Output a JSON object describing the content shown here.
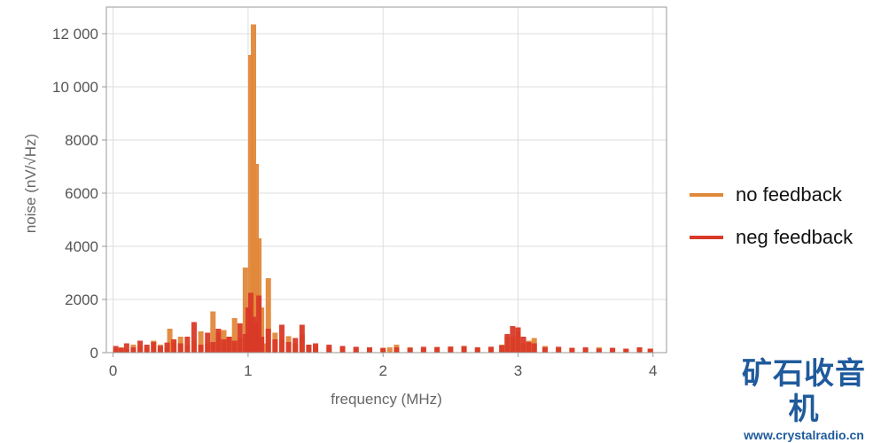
{
  "chart_data": {
    "type": "bar",
    "xlabel": "frequency (MHz)",
    "ylabel": "noise (nV/√Hz)",
    "xlim": [
      -0.05,
      4.1
    ],
    "ylim": [
      0,
      13000
    ],
    "xticks": [
      0,
      1,
      2,
      3,
      4
    ],
    "xtick_labels": [
      "0",
      "1",
      "2",
      "3",
      "4"
    ],
    "yticks": [
      0,
      2000,
      4000,
      6000,
      8000,
      10000,
      12000
    ],
    "ytick_labels": [
      "0",
      "2000",
      "4000",
      "6000",
      "8000",
      "10 000",
      "12 000"
    ],
    "grid": true,
    "legend_position": "right",
    "series": [
      {
        "name": "no feedback",
        "color": "#e0883a",
        "x": [
          0.02,
          0.06,
          0.1,
          0.15,
          0.2,
          0.25,
          0.3,
          0.35,
          0.4,
          0.42,
          0.45,
          0.5,
          0.55,
          0.6,
          0.65,
          0.7,
          0.74,
          0.78,
          0.82,
          0.86,
          0.9,
          0.94,
          0.98,
          1.0,
          1.02,
          1.04,
          1.06,
          1.08,
          1.1,
          1.12,
          1.15,
          1.2,
          1.25,
          1.3,
          1.35,
          1.4,
          1.45,
          1.5,
          1.6,
          1.7,
          1.8,
          1.9,
          2.0,
          2.05,
          2.1,
          2.2,
          2.3,
          2.4,
          2.5,
          2.6,
          2.7,
          2.8,
          2.88,
          2.92,
          2.96,
          3.0,
          3.04,
          3.08,
          3.12,
          3.2,
          3.3,
          3.4,
          3.5,
          3.6,
          3.7,
          3.8,
          3.9,
          3.98
        ],
        "values": [
          150,
          200,
          120,
          300,
          250,
          180,
          450,
          300,
          200,
          900,
          380,
          600,
          280,
          450,
          800,
          350,
          1550,
          750,
          850,
          600,
          1300,
          550,
          3200,
          1100,
          11200,
          12350,
          7100,
          4300,
          1700,
          350,
          2800,
          750,
          500,
          620,
          350,
          680,
          300,
          280,
          200,
          250,
          200,
          180,
          150,
          200,
          300,
          200,
          150,
          220,
          200,
          250,
          180,
          220,
          300,
          600,
          600,
          800,
          350,
          450,
          550,
          250,
          200,
          180,
          150,
          200,
          180,
          150,
          200,
          150
        ]
      },
      {
        "name": "neg feedback",
        "color": "#d93a28",
        "x": [
          0.02,
          0.06,
          0.1,
          0.15,
          0.2,
          0.25,
          0.3,
          0.35,
          0.4,
          0.45,
          0.5,
          0.55,
          0.6,
          0.65,
          0.7,
          0.74,
          0.78,
          0.82,
          0.86,
          0.9,
          0.94,
          0.98,
          1.0,
          1.02,
          1.04,
          1.06,
          1.08,
          1.1,
          1.15,
          1.2,
          1.25,
          1.3,
          1.35,
          1.4,
          1.45,
          1.5,
          1.6,
          1.7,
          1.8,
          1.9,
          2.0,
          2.1,
          2.2,
          2.3,
          2.4,
          2.5,
          2.6,
          2.7,
          2.8,
          2.88,
          2.92,
          2.96,
          3.0,
          3.04,
          3.08,
          3.12,
          3.2,
          3.3,
          3.4,
          3.5,
          3.6,
          3.7,
          3.8,
          3.9,
          3.98
        ],
        "values": [
          250,
          180,
          350,
          200,
          450,
          300,
          400,
          250,
          380,
          500,
          350,
          600,
          1150,
          300,
          750,
          400,
          900,
          500,
          600,
          450,
          1100,
          700,
          1700,
          2250,
          1350,
          1150,
          2150,
          600,
          900,
          500,
          1050,
          400,
          550,
          1050,
          300,
          350,
          300,
          250,
          220,
          200,
          180,
          200,
          180,
          220,
          200,
          230,
          250,
          200,
          220,
          280,
          700,
          1000,
          950,
          600,
          400,
          350,
          200,
          220,
          180,
          200,
          150,
          180,
          150,
          200,
          150
        ]
      }
    ]
  },
  "watermark": {
    "title": "矿石收音机",
    "url": "www.crystalradio.cn"
  }
}
